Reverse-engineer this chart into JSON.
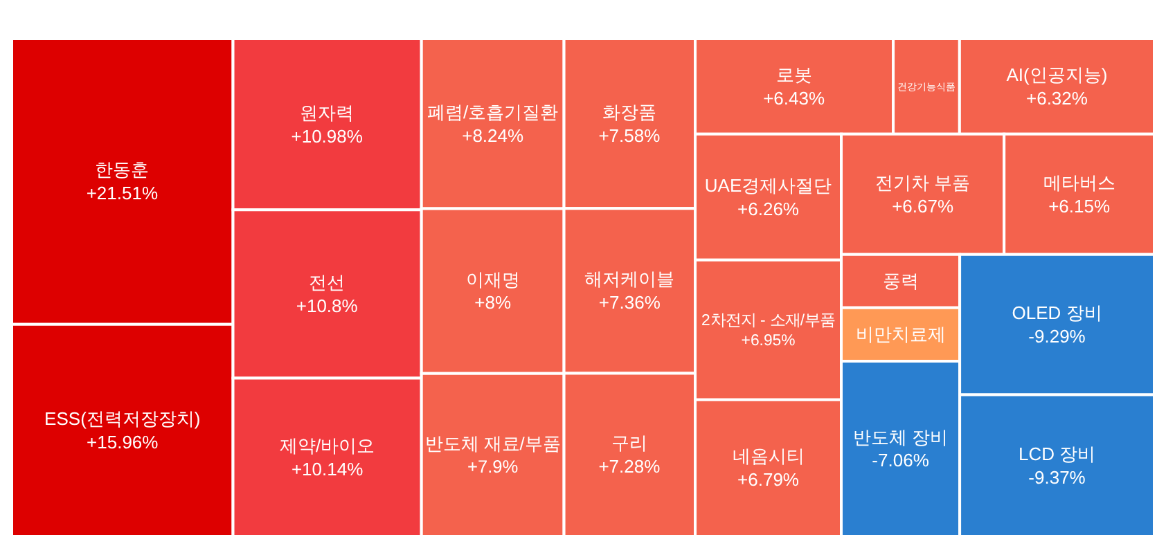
{
  "chart_data": {
    "type": "other",
    "categories": [
      "한동훈",
      "ESS(전력저장장치)",
      "원자력",
      "전선",
      "제약/바이오",
      "폐렴/호흡기질환",
      "이재명",
      "반도체 재료/부품",
      "화장품",
      "해저케이블",
      "구리",
      "로봇",
      "건강기능식품",
      "AI(인공지능)",
      "UAE경제사절단",
      "2차전지 - 소재/부품",
      "네옴시티",
      "전기차 부품",
      "메타버스",
      "풍력",
      "비만치료제",
      "반도체 장비",
      "OLED 장비",
      "LCD 장비"
    ],
    "values": [
      21.51,
      15.96,
      10.98,
      10.8,
      10.14,
      8.24,
      8,
      7.9,
      7.58,
      7.36,
      7.28,
      6.43,
      null,
      6.32,
      6.26,
      6.95,
      6.79,
      6.67,
      6.15,
      null,
      null,
      -7.06,
      -9.29,
      -9.37
    ],
    "value_labels": [
      "+21.51%",
      "+15.96%",
      "+10.98%",
      "+10.8%",
      "+10.14%",
      "+8.24%",
      "+8%",
      "+7.9%",
      "+7.58%",
      "+7.36%",
      "+7.28%",
      "+6.43%",
      null,
      "+6.32%",
      "+6.26%",
      "+6.95%",
      "+6.79%",
      "+6.67%",
      "+6.15%",
      null,
      null,
      "-7.06%",
      "-9.29%",
      "-9.37%"
    ],
    "colors": [
      "#dd0000",
      "#dd0000",
      "#f23b3f",
      "#f23b3f",
      "#f23b3f",
      "#f4624d",
      "#f4624d",
      "#f4624d",
      "#f4624d",
      "#f4624d",
      "#f4624d",
      "#f4624d",
      "#f4624d",
      "#f4624d",
      "#f4624d",
      "#f4624d",
      "#f4624d",
      "#f4624d",
      "#f4624d",
      "#f4624d",
      "#ff9955",
      "#2a7fd0",
      "#2a7fd0",
      "#2a7fd0"
    ]
  }
}
